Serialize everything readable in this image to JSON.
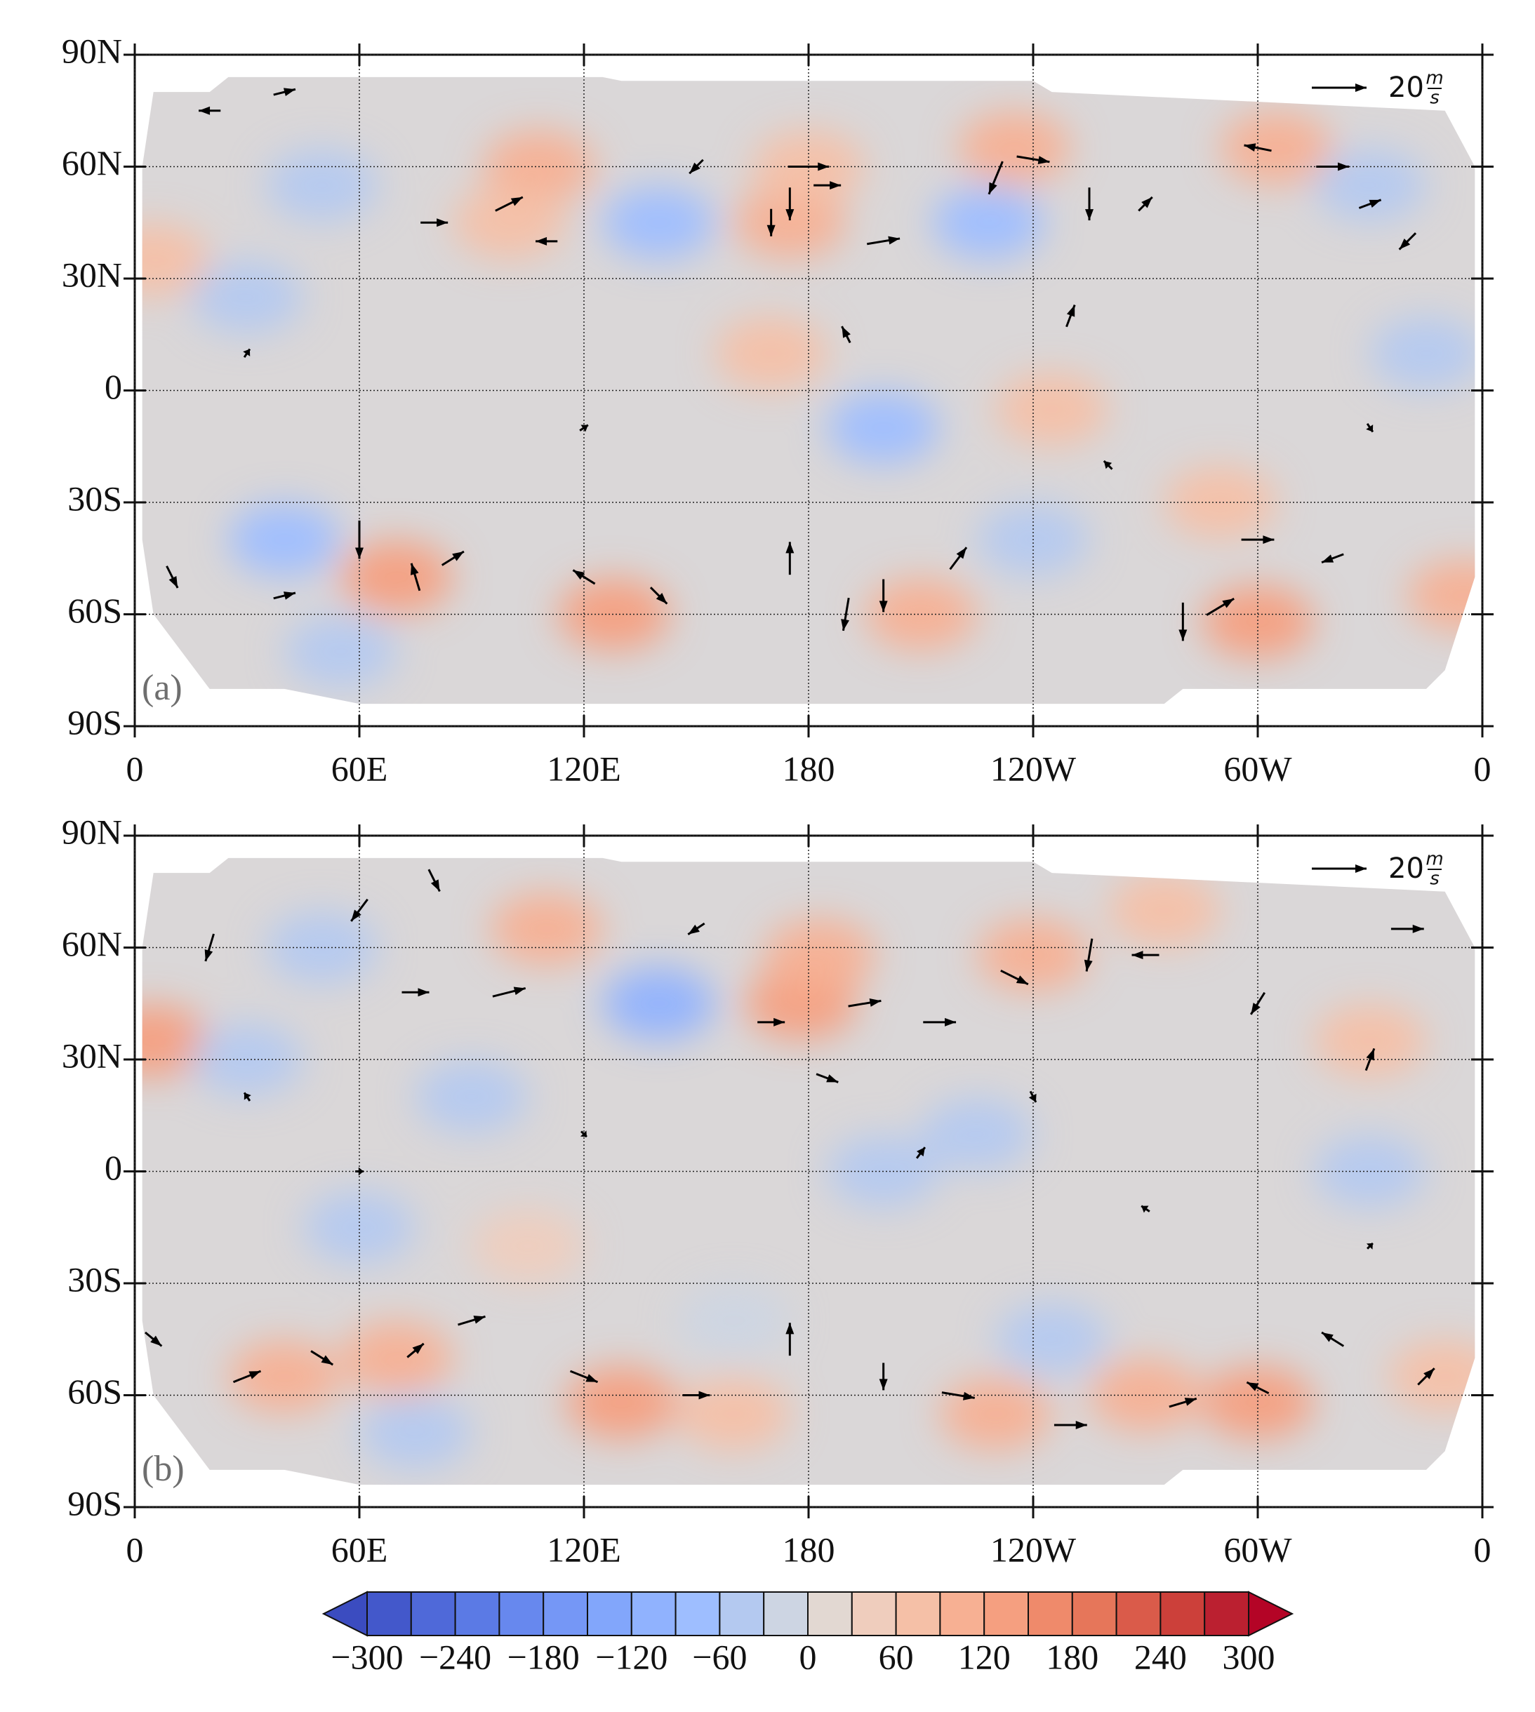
{
  "chart_data": [
    {
      "type": "vector_map",
      "label": "(a)",
      "xlim": [
        0,
        360
      ],
      "ylim": [
        -90,
        90
      ],
      "xticks": [
        0,
        {
          "value": 60,
          "label": "60E"
        },
        {
          "value": 120,
          "label": "120E"
        },
        180,
        {
          "value": 240,
          "label": "120W"
        },
        {
          "value": 300,
          "label": "60W"
        },
        {
          "value": 360,
          "label": "0"
        }
      ],
      "yticks": [
        {
          "value": 90,
          "label": "90N"
        },
        {
          "value": 60,
          "label": "60N"
        },
        {
          "value": 30,
          "label": "30N"
        },
        0,
        {
          "value": -30,
          "label": "30S"
        },
        {
          "value": -60,
          "label": "60S"
        },
        {
          "value": -90,
          "label": "90S"
        }
      ],
      "grid": true,
      "reference_vector": 20,
      "reference_unit": {
        "num": "m",
        "den": "s"
      },
      "field": {
        "lon": [
          108,
          100,
          175,
          180,
          5,
          235,
          305,
          70,
          128,
          210,
          300,
          355,
          170,
          290,
          245,
          50,
          140,
          228,
          200,
          40,
          330,
          55,
          240,
          345,
          30
        ],
        "lat": [
          60,
          45,
          45,
          60,
          35,
          65,
          65,
          -50,
          -60,
          -60,
          -62,
          -55,
          10,
          -30,
          -5,
          55,
          45,
          45,
          -10,
          -40,
          55,
          -70,
          -40,
          10,
          25
        ],
        "values": [
          90,
          60,
          90,
          60,
          60,
          90,
          90,
          120,
          120,
          90,
          120,
          90,
          60,
          60,
          60,
          -60,
          -90,
          -90,
          -90,
          -90,
          -60,
          -60,
          -60,
          -60,
          -60
        ]
      },
      "vectors": {
        "lon": [
          180,
          175,
          170,
          185,
          230,
          240,
          255,
          270,
          200,
          100,
          80,
          20,
          40,
          300,
          320,
          330,
          340,
          60,
          75,
          85,
          40,
          120,
          140,
          175,
          190,
          200,
          220,
          280,
          290,
          300,
          320,
          10,
          150,
          110,
          250,
          190,
          30,
          120,
          330,
          260
        ],
        "lat": [
          60,
          50,
          45,
          55,
          57,
          62,
          50,
          50,
          40,
          50,
          45,
          75,
          80,
          65,
          60,
          50,
          40,
          -40,
          -50,
          -45,
          -55,
          -50,
          -55,
          -45,
          -60,
          -55,
          -45,
          -62,
          -58,
          -40,
          -45,
          -50,
          60,
          40,
          20,
          15,
          10,
          -10,
          -10,
          -20
        ],
        "u": [
          15,
          0,
          0,
          10,
          -5,
          12,
          0,
          5,
          12,
          10,
          10,
          -8,
          8,
          -10,
          12,
          8,
          -6,
          0,
          -3,
          8,
          8,
          -8,
          6,
          0,
          -2,
          0,
          6,
          0,
          10,
          12,
          -8,
          4,
          -5,
          -8,
          3,
          -3,
          2,
          3,
          2,
          -3
        ],
        "v": [
          0,
          -12,
          -10,
          0,
          -12,
          -2,
          -12,
          5,
          2,
          5,
          0,
          0,
          2,
          2,
          0,
          3,
          -6,
          -14,
          10,
          5,
          2,
          5,
          -6,
          12,
          -12,
          -12,
          8,
          -14,
          6,
          0,
          -3,
          -8,
          -5,
          0,
          8,
          6,
          3,
          2,
          -3,
          3
        ]
      }
    },
    {
      "type": "vector_map",
      "label": "(b)",
      "xlim": [
        0,
        360
      ],
      "ylim": [
        -90,
        90
      ],
      "xticks": [
        0,
        {
          "value": 60,
          "label": "60E"
        },
        {
          "value": 120,
          "label": "120E"
        },
        180,
        {
          "value": 240,
          "label": "120W"
        },
        {
          "value": 300,
          "label": "60W"
        },
        {
          "value": 360,
          "label": "0"
        }
      ],
      "yticks": [
        {
          "value": 90,
          "label": "90N"
        },
        {
          "value": 60,
          "label": "60N"
        },
        {
          "value": 30,
          "label": "30N"
        },
        0,
        {
          "value": -30,
          "label": "30S"
        },
        {
          "value": -60,
          "label": "60S"
        },
        {
          "value": -90,
          "label": "90S"
        }
      ],
      "grid": true,
      "reference_vector": 20,
      "reference_unit": {
        "num": "m",
        "den": "s"
      },
      "field": {
        "lon": [
          5,
          110,
          178,
          183,
          240,
          275,
          330,
          40,
          70,
          130,
          160,
          230,
          300,
          350,
          105,
          270,
          140,
          50,
          225,
          200,
          30,
          90,
          60,
          330,
          245,
          160,
          75
        ],
        "lat": [
          35,
          65,
          45,
          58,
          58,
          70,
          35,
          -55,
          -50,
          -62,
          -65,
          -65,
          -62,
          -55,
          -20,
          -60,
          45,
          60,
          10,
          0,
          30,
          20,
          -15,
          0,
          -45,
          -40,
          -70
        ],
        "values": [
          120,
          90,
          120,
          90,
          90,
          60,
          60,
          90,
          90,
          120,
          60,
          90,
          120,
          60,
          30,
          90,
          -120,
          -60,
          -60,
          -60,
          -60,
          -60,
          -60,
          -60,
          -60,
          -30,
          -60
        ]
      },
      "vectors": {
        "lon": [
          100,
          75,
          170,
          195,
          215,
          235,
          255,
          270,
          340,
          20,
          60,
          80,
          150,
          185,
          300,
          330,
          30,
          50,
          75,
          90,
          120,
          150,
          175,
          200,
          220,
          250,
          280,
          300,
          320,
          345,
          5,
          210,
          120,
          60,
          270,
          330,
          240,
          30
        ],
        "lat": [
          48,
          48,
          40,
          45,
          40,
          52,
          58,
          58,
          65,
          60,
          70,
          78,
          65,
          25,
          45,
          30,
          -55,
          -50,
          -48,
          -40,
          -55,
          -60,
          -45,
          -55,
          -60,
          -68,
          -62,
          -58,
          -45,
          -55,
          -45,
          5,
          10,
          0,
          -10,
          -20,
          20,
          20
        ],
        "u": [
          12,
          10,
          10,
          12,
          12,
          10,
          -2,
          -10,
          12,
          -3,
          -6,
          4,
          -6,
          8,
          -5,
          3,
          10,
          8,
          6,
          10,
          10,
          10,
          0,
          0,
          12,
          12,
          10,
          -8,
          -8,
          6,
          6,
          3,
          2,
          3,
          -3,
          2,
          2,
          -2
        ],
        "v": [
          3,
          0,
          0,
          2,
          0,
          -5,
          -12,
          0,
          0,
          -10,
          -8,
          -8,
          -4,
          -3,
          -8,
          8,
          4,
          -5,
          5,
          3,
          -4,
          0,
          12,
          -10,
          -2,
          0,
          3,
          4,
          5,
          6,
          -5,
          4,
          -2,
          0,
          2,
          2,
          -4,
          3
        ]
      }
    }
  ],
  "colorbar": {
    "levels": [
      -300,
      -270,
      -240,
      -210,
      -180,
      -150,
      -120,
      -90,
      -60,
      -30,
      0,
      30,
      60,
      90,
      120,
      150,
      180,
      210,
      240,
      270,
      300
    ],
    "colors": [
      "#3b4cc0",
      "#4358cb",
      "#4f69d9",
      "#5b7ae5",
      "#6788ee",
      "#7597f6",
      "#82a6fb",
      "#90b2fe",
      "#9ebeff",
      "#b4c9f0",
      "#cdd5e3",
      "#e2d8d2",
      "#efcdbd",
      "#f5c0a7",
      "#f7b093",
      "#f59f80",
      "#ef8a6b",
      "#e6765a",
      "#da5b4a",
      "#cc403a",
      "#bb2030",
      "#b40426"
    ],
    "ticks": [
      {
        "value": -300,
        "label": "−300"
      },
      {
        "value": -240,
        "label": "−240"
      },
      {
        "value": -180,
        "label": "−180"
      },
      {
        "value": -120,
        "label": "−120"
      },
      {
        "value": -60,
        "label": "−60"
      },
      0,
      60,
      120,
      180,
      240,
      300
    ]
  }
}
